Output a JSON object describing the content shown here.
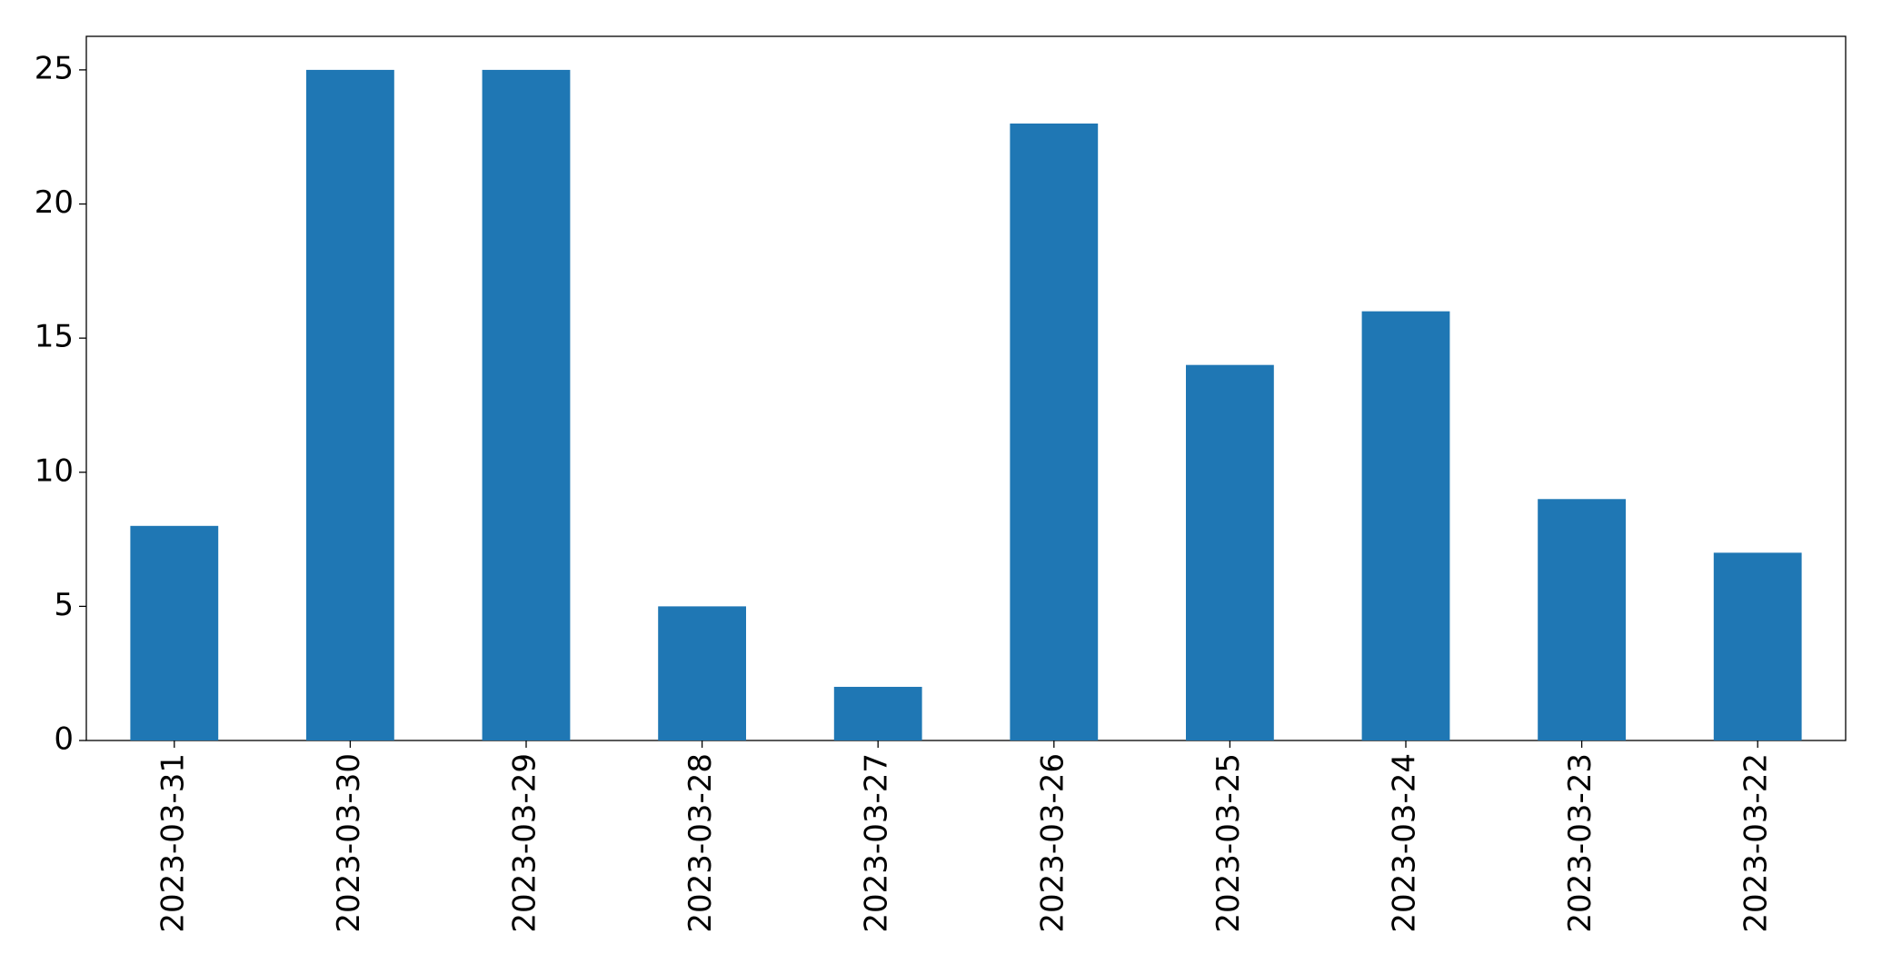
{
  "chart_data": {
    "type": "bar",
    "categories": [
      "2023-03-31",
      "2023-03-30",
      "2023-03-29",
      "2023-03-28",
      "2023-03-27",
      "2023-03-26",
      "2023-03-25",
      "2023-03-24",
      "2023-03-23",
      "2023-03-22"
    ],
    "values": [
      8,
      25,
      25,
      5,
      2,
      23,
      14,
      16,
      9,
      7
    ],
    "color": "#1f77b4",
    "ylim": [
      0,
      26.25
    ],
    "yticks": [
      0,
      5,
      10,
      15,
      20,
      25
    ],
    "grid": false
  }
}
